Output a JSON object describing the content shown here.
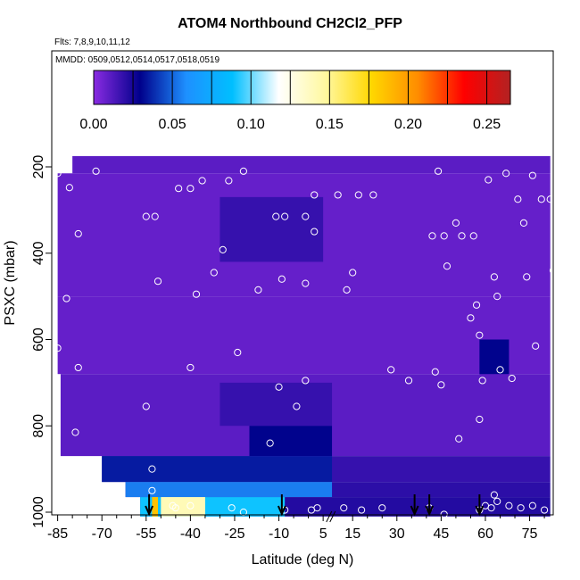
{
  "chart_data": {
    "type": "heatmap",
    "title": "ATOM4 Northbound CH2Cl2_PFP",
    "flights_note": "Flts: 7,8,9,10,11,12",
    "dates_note": "MMDD: 0509,0512,0514,0517,0518,0519",
    "xlabel": "Latitude (deg N)",
    "ylabel": "PSXC (mbar)",
    "xlim": [
      -87,
      83
    ],
    "ylim": [
      1010,
      100
    ],
    "x_ticks": [
      -85,
      -70,
      -55,
      -40,
      -25,
      -10,
      5,
      15,
      30,
      45,
      60,
      75
    ],
    "y_ticks": [
      200,
      400,
      600,
      800,
      1000
    ],
    "colorbar": {
      "min": 0.0,
      "max": 0.265,
      "ticks": [
        "0.00",
        "0.05",
        "0.10",
        "0.15",
        "0.20",
        "0.25"
      ],
      "colors": [
        "#8a2be2",
        "#00008b",
        "#1e90ff",
        "#00bfff",
        "#ffffff",
        "#fff8a0",
        "#ffd700",
        "#ff8c00",
        "#ff0000",
        "#b22222"
      ]
    },
    "field_regions": [
      {
        "lat": [
          -80,
          82
        ],
        "p": [
          175,
          215
        ],
        "value": 0.01
      },
      {
        "lat": [
          -85,
          82
        ],
        "p": [
          215,
          500
        ],
        "value": 0.008
      },
      {
        "lat": [
          -30,
          5
        ],
        "p": [
          270,
          420
        ],
        "value": 0.018
      },
      {
        "lat": [
          -85,
          82
        ],
        "p": [
          500,
          680
        ],
        "value": 0.008
      },
      {
        "lat": [
          58,
          68
        ],
        "p": [
          600,
          760
        ],
        "value": 0.03
      },
      {
        "lat": [
          -84,
          82
        ],
        "p": [
          680,
          870
        ],
        "value": 0.01
      },
      {
        "lat": [
          -30,
          8
        ],
        "p": [
          700,
          800
        ],
        "value": 0.018
      },
      {
        "lat": [
          -20,
          8
        ],
        "p": [
          800,
          870
        ],
        "value": 0.03
      },
      {
        "lat": [
          -70,
          82
        ],
        "p": [
          870,
          930
        ],
        "value": 0.018
      },
      {
        "lat": [
          -70,
          8
        ],
        "p": [
          870,
          930
        ],
        "value": 0.035
      },
      {
        "lat": [
          -62,
          82
        ],
        "p": [
          930,
          965
        ],
        "value": 0.02
      },
      {
        "lat": [
          -62,
          8
        ],
        "p": [
          930,
          965
        ],
        "value": 0.055
      },
      {
        "lat": [
          -57,
          82
        ],
        "p": [
          965,
          1010
        ],
        "value": 0.022
      },
      {
        "lat": [
          -57,
          -8
        ],
        "p": [
          965,
          1010
        ],
        "value": 0.09
      },
      {
        "lat": [
          -50,
          -35
        ],
        "p": [
          965,
          1010
        ],
        "value": 0.14
      },
      {
        "lat": [
          -53,
          -51
        ],
        "p": [
          965,
          1010
        ],
        "value": 0.185
      }
    ],
    "sample_points": [
      [
        -85,
        215
      ],
      [
        -81,
        248
      ],
      [
        -72,
        210
      ],
      [
        -78,
        355
      ],
      [
        -82,
        505
      ],
      [
        -85,
        620
      ],
      [
        -78,
        665
      ],
      [
        -79,
        815
      ],
      [
        -52,
        315
      ],
      [
        -55,
        315
      ],
      [
        -51,
        465
      ],
      [
        -44,
        250
      ],
      [
        -40,
        250
      ],
      [
        -36,
        232
      ],
      [
        -27,
        232
      ],
      [
        -29,
        392
      ],
      [
        -38,
        495
      ],
      [
        -32,
        445
      ],
      [
        -40,
        665
      ],
      [
        -22,
        210
      ],
      [
        -24,
        630
      ],
      [
        -17,
        485
      ],
      [
        -11,
        315
      ],
      [
        -8,
        315
      ],
      [
        -9,
        460
      ],
      [
        -1,
        315
      ],
      [
        -1,
        470
      ],
      [
        2,
        265
      ],
      [
        2,
        350
      ],
      [
        10,
        265
      ],
      [
        13,
        485
      ],
      [
        15,
        445
      ],
      [
        17,
        265
      ],
      [
        22,
        265
      ],
      [
        -10,
        710
      ],
      [
        -4,
        755
      ],
      [
        -1,
        695
      ],
      [
        -13,
        840
      ],
      [
        -55,
        755
      ],
      [
        -45,
        990
      ],
      [
        -53,
        900
      ],
      [
        -53,
        950
      ],
      [
        -26,
        990
      ],
      [
        -22,
        1000
      ],
      [
        -8,
        995
      ],
      [
        1,
        995
      ],
      [
        3,
        990
      ],
      [
        12,
        990
      ],
      [
        18,
        995
      ],
      [
        25,
        990
      ],
      [
        34,
        695
      ],
      [
        28,
        670
      ],
      [
        42,
        360
      ],
      [
        43,
        675
      ],
      [
        45,
        705
      ],
      [
        44,
        210
      ],
      [
        46,
        360
      ],
      [
        47,
        430
      ],
      [
        50,
        330
      ],
      [
        52,
        360
      ],
      [
        51,
        830
      ],
      [
        55,
        550
      ],
      [
        56,
        360
      ],
      [
        57,
        520
      ],
      [
        58,
        590
      ],
      [
        58,
        785
      ],
      [
        59,
        695
      ],
      [
        61,
        230
      ],
      [
        63,
        455
      ],
      [
        64,
        500
      ],
      [
        65,
        670
      ],
      [
        67,
        215
      ],
      [
        69,
        690
      ],
      [
        71,
        275
      ],
      [
        73,
        330
      ],
      [
        74,
        455
      ],
      [
        76,
        220
      ],
      [
        77,
        615
      ],
      [
        79,
        275
      ],
      [
        82,
        275
      ],
      [
        83,
        440
      ],
      [
        58,
        995
      ],
      [
        60,
        985
      ],
      [
        62,
        990
      ],
      [
        64,
        975
      ],
      [
        63,
        960
      ],
      [
        68,
        985
      ],
      [
        72,
        990
      ],
      [
        76,
        985
      ],
      [
        80,
        995
      ],
      [
        41,
        990
      ],
      [
        46,
        1005
      ],
      [
        -46,
        985
      ],
      [
        -40,
        985
      ]
    ],
    "arrows": [
      -54,
      -9,
      36,
      41,
      58
    ],
    "axis_break_lat": 7
  }
}
